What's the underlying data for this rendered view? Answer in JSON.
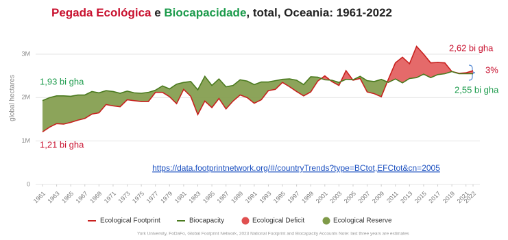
{
  "chart_data": {
    "type": "line-area",
    "title_parts": [
      {
        "text": "Pegada Ecológica",
        "color": "#c8102e"
      },
      {
        "text": " e ",
        "color": "#222222"
      },
      {
        "text": "Biocapacidade",
        "color": "#1a9a4a"
      },
      {
        "text": ", total, Oceania: 1961-2022",
        "color": "#222222"
      }
    ],
    "y_label": "global hectares",
    "x": [
      1961,
      1962,
      1963,
      1964,
      1965,
      1966,
      1967,
      1968,
      1969,
      1970,
      1971,
      1972,
      1973,
      1974,
      1975,
      1976,
      1977,
      1978,
      1979,
      1980,
      1981,
      1982,
      1983,
      1984,
      1985,
      1986,
      1987,
      1988,
      1989,
      1990,
      1991,
      1992,
      1993,
      1994,
      1995,
      1996,
      1997,
      1998,
      1999,
      2000,
      2001,
      2002,
      2003,
      2004,
      2005,
      2006,
      2007,
      2008,
      2009,
      2010,
      2011,
      2012,
      2013,
      2014,
      2015,
      2016,
      2017,
      2018,
      2019,
      2020,
      2021,
      2022
    ],
    "xlim": [
      1961,
      2022
    ],
    "xticks": [
      1961,
      1963,
      1965,
      1967,
      1969,
      1971,
      1973,
      1975,
      1977,
      1979,
      1981,
      1983,
      1985,
      1987,
      1989,
      1991,
      1993,
      1995,
      1997,
      1999,
      2001,
      2003,
      2005,
      2007,
      2009,
      2011,
      2013,
      2015,
      2017,
      2019,
      2021,
      2022
    ],
    "ylim": [
      0,
      3000000
    ],
    "yticks": [
      0,
      {
        "value": 1000000,
        "label": "1M"
      },
      {
        "value": 2000000,
        "label": "2M"
      },
      {
        "value": 3000000,
        "label": "3M"
      }
    ],
    "grid": true,
    "series": [
      {
        "name": "Ecological Footprint",
        "color": "#c8201e",
        "values": [
          1210000,
          1320000,
          1400000,
          1390000,
          1430000,
          1480000,
          1520000,
          1620000,
          1650000,
          1840000,
          1810000,
          1790000,
          1950000,
          1930000,
          1910000,
          1910000,
          2120000,
          2120000,
          2020000,
          1860000,
          2190000,
          2030000,
          1610000,
          1920000,
          1770000,
          1980000,
          1740000,
          1920000,
          2060000,
          2000000,
          1870000,
          1950000,
          2160000,
          2190000,
          2350000,
          2250000,
          2140000,
          2040000,
          2130000,
          2380000,
          2500000,
          2370000,
          2280000,
          2620000,
          2400000,
          2440000,
          2130000,
          2090000,
          2020000,
          2420000,
          2800000,
          2930000,
          2780000,
          3180000,
          3000000,
          2800000,
          2810000,
          2800000,
          2600000,
          2560000,
          2570000,
          2620000
        ]
      },
      {
        "name": "Biocapacity",
        "color": "#4a7a1e",
        "values": [
          1930000,
          2000000,
          2040000,
          2040000,
          2030000,
          2060000,
          2060000,
          2140000,
          2110000,
          2160000,
          2140000,
          2100000,
          2150000,
          2110000,
          2100000,
          2120000,
          2170000,
          2270000,
          2200000,
          2310000,
          2350000,
          2370000,
          2180000,
          2490000,
          2280000,
          2430000,
          2250000,
          2280000,
          2410000,
          2380000,
          2300000,
          2360000,
          2360000,
          2390000,
          2420000,
          2430000,
          2400000,
          2300000,
          2480000,
          2470000,
          2410000,
          2400000,
          2350000,
          2420000,
          2410000,
          2490000,
          2390000,
          2370000,
          2420000,
          2350000,
          2430000,
          2340000,
          2440000,
          2460000,
          2540000,
          2460000,
          2530000,
          2550000,
          2600000,
          2550000,
          2550000,
          2550000
        ]
      }
    ],
    "areas": [
      {
        "name": "Ecological Deficit",
        "color": "#e05050"
      },
      {
        "name": "Ecological Reserve",
        "color": "#7f9a48"
      }
    ],
    "annotations": [
      {
        "text": "1,93 bi gha",
        "color": "#1a9a4a"
      },
      {
        "text": "1,21 bi gha",
        "color": "#c8102e"
      },
      {
        "text": "2,62 bi gha",
        "color": "#c8102e"
      },
      {
        "text": "3%",
        "color": "#c8102e"
      },
      {
        "text": "2,55 bi gha",
        "color": "#1a9a4a"
      }
    ],
    "url": "https://data.footprintnetwork.org/#/countryTrends?type=BCtot,EFCtot&cn=2005",
    "source": "York University, FoDaFo, Global Footprint Network, 2023 National Footprint and Biocapacity Accounts Note: last three years are estimates"
  }
}
